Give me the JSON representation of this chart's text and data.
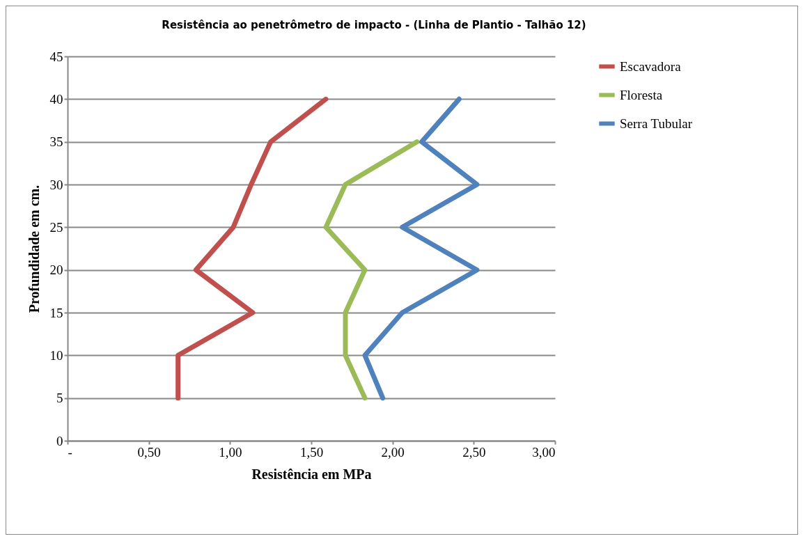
{
  "chart_data": {
    "type": "line",
    "title": "Resistência ao penetrômetro de impacto - (Linha de Plantio - Talhão 12)",
    "xlabel": "Resistência em MPa",
    "ylabel": "Profundidade em cm.",
    "xlim": [
      0,
      3
    ],
    "xticks": [
      {
        "value": 0,
        "label": "-"
      },
      {
        "value": 0.5,
        "label": "0,50"
      },
      {
        "value": 1,
        "label": "1,00"
      },
      {
        "value": 1.5,
        "label": "1,50"
      },
      {
        "value": 2,
        "label": "2,00"
      },
      {
        "value": 2.5,
        "label": "2,50"
      },
      {
        "value": 3,
        "label": "3,00"
      }
    ],
    "ylim": [
      0,
      45
    ],
    "yticks": [
      0,
      5,
      10,
      15,
      20,
      25,
      30,
      35,
      40,
      45
    ],
    "grid": "y",
    "legend": "right",
    "marker": "none",
    "line_style": "solid",
    "series": [
      {
        "name": "Escavadora",
        "color": "#c0504d",
        "x": [
          0.68,
          0.68,
          1.14,
          0.79,
          1.02,
          1.13,
          1.25,
          1.59
        ],
        "values": [
          5,
          10,
          15,
          20,
          25,
          30,
          35,
          40
        ]
      },
      {
        "name": "Floresta",
        "color": "#9bbb59",
        "x": [
          1.83,
          1.71,
          1.71,
          1.83,
          1.59,
          1.71,
          2.15
        ],
        "values": [
          5,
          10,
          15,
          20,
          25,
          30,
          35
        ]
      },
      {
        "name": "Serra Tubular",
        "color": "#4f81bd",
        "x": [
          1.94,
          1.83,
          2.06,
          2.52,
          2.06,
          2.52,
          2.18,
          2.41
        ],
        "values": [
          5,
          10,
          15,
          20,
          25,
          30,
          35,
          40
        ]
      }
    ]
  }
}
